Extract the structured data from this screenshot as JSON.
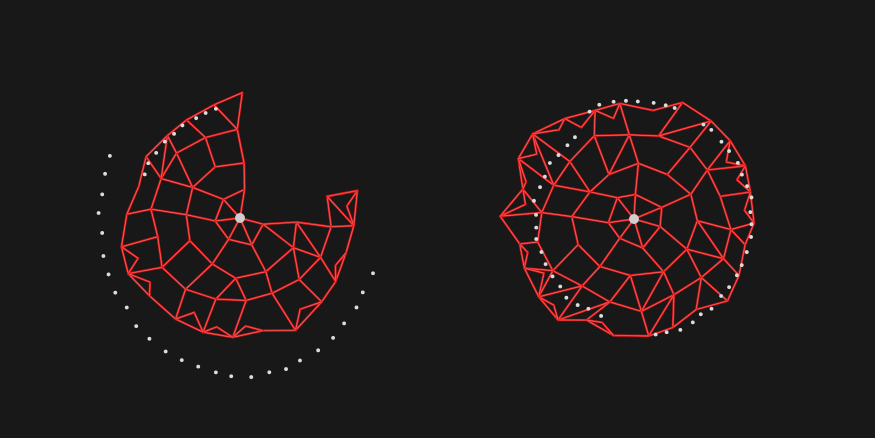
{
  "colors": {
    "background": "#181818",
    "mesh_edge": "#e01818",
    "mesh_highlight": "#ff9a9a",
    "dot": "#dcdcdc",
    "center": "#cfcfcf"
  },
  "figures": [
    {
      "name": "left-mesh",
      "description_shape": "disc-with-wedge-cut",
      "ring_count": 4,
      "has_orbit_dots": true
    },
    {
      "name": "right-mesh",
      "description_shape": "full-disc",
      "ring_count": 4,
      "has_orbit_dots": true
    }
  ]
}
